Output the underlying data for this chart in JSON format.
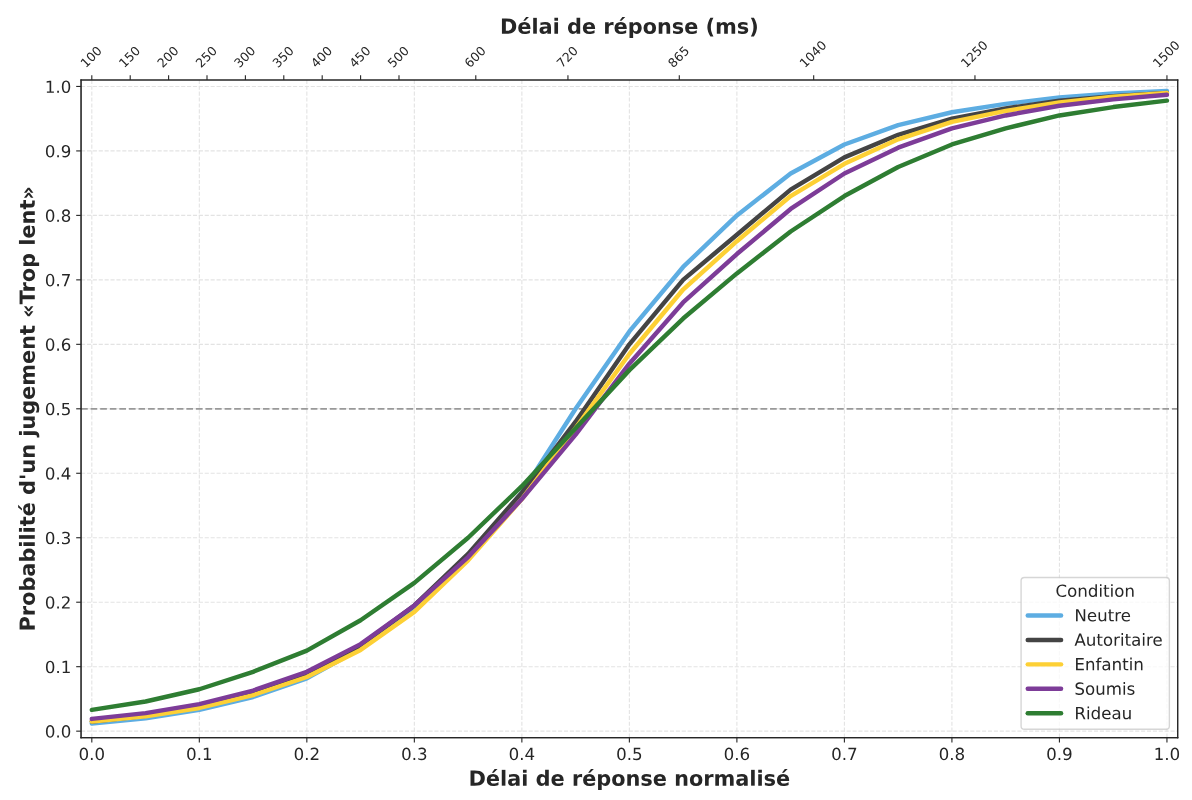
{
  "chart_data": {
    "type": "line",
    "xlabel": "Délai de réponse normalisé",
    "x2label": "Délai de réponse (ms)",
    "ylabel": "Probabilité d'un jugement «Trop lent»",
    "legend_title": "Condition",
    "x": [
      0,
      0.05,
      0.1,
      0.15,
      0.2,
      0.25,
      0.3,
      0.35,
      0.4,
      0.45,
      0.5,
      0.55,
      0.6,
      0.65,
      0.7,
      0.75,
      0.8,
      0.85,
      0.9,
      0.95,
      1.0
    ],
    "series": [
      {
        "name": "Neutre",
        "color": "#5dade2",
        "values": [
          0.012,
          0.02,
          0.033,
          0.053,
          0.082,
          0.128,
          0.19,
          0.27,
          0.37,
          0.5,
          0.62,
          0.72,
          0.8,
          0.865,
          0.91,
          0.94,
          0.96,
          0.973,
          0.983,
          0.989,
          0.993
        ]
      },
      {
        "name": "Autoritaire",
        "color": "#444444",
        "values": [
          0.015,
          0.024,
          0.038,
          0.058,
          0.088,
          0.133,
          0.195,
          0.275,
          0.37,
          0.48,
          0.6,
          0.7,
          0.77,
          0.84,
          0.89,
          0.925,
          0.95,
          0.966,
          0.978,
          0.985,
          0.99
        ]
      },
      {
        "name": "Enfantin",
        "color": "#fdd035",
        "values": [
          0.015,
          0.023,
          0.036,
          0.056,
          0.084,
          0.126,
          0.185,
          0.265,
          0.36,
          0.47,
          0.585,
          0.685,
          0.76,
          0.83,
          0.88,
          0.918,
          0.945,
          0.962,
          0.975,
          0.984,
          0.99
        ]
      },
      {
        "name": "Soumis",
        "color": "#7d3c98",
        "values": [
          0.019,
          0.028,
          0.042,
          0.063,
          0.092,
          0.135,
          0.195,
          0.27,
          0.36,
          0.46,
          0.57,
          0.665,
          0.74,
          0.81,
          0.865,
          0.905,
          0.935,
          0.955,
          0.97,
          0.98,
          0.987
        ]
      },
      {
        "name": "Rideau",
        "color": "#2e7d32",
        "values": [
          0.033,
          0.046,
          0.065,
          0.092,
          0.125,
          0.172,
          0.23,
          0.3,
          0.38,
          0.47,
          0.56,
          0.64,
          0.71,
          0.775,
          0.83,
          0.875,
          0.91,
          0.935,
          0.955,
          0.968,
          0.978
        ]
      }
    ],
    "xlim": [
      -0.01,
      1.01
    ],
    "xticks": [
      {
        "value": 0,
        "label": "0.0"
      },
      0.1,
      0.2,
      0.3,
      0.4,
      0.5,
      0.6,
      0.7,
      0.8,
      0.9,
      {
        "value": 1,
        "label": "1.0"
      }
    ],
    "x2lim": [
      86,
      1514
    ],
    "x2ticks": [
      100,
      150,
      200,
      250,
      300,
      350,
      400,
      450,
      500,
      600,
      720,
      865,
      1040,
      1250,
      1500
    ],
    "ylim": [
      -0.01,
      1.01
    ],
    "yticks": [
      {
        "value": 0,
        "label": "0.0"
      },
      0.1,
      0.2,
      0.3,
      0.4,
      0.5,
      0.6,
      0.7,
      0.8,
      0.9,
      {
        "value": 1,
        "label": "1.0"
      }
    ],
    "ref_lines": [
      {
        "axis": "y",
        "value": 0.5,
        "color": "#999999",
        "line_style": "dashed"
      }
    ],
    "grid": true,
    "legend": "bottom right",
    "line_style": "solid",
    "marker": "none"
  }
}
